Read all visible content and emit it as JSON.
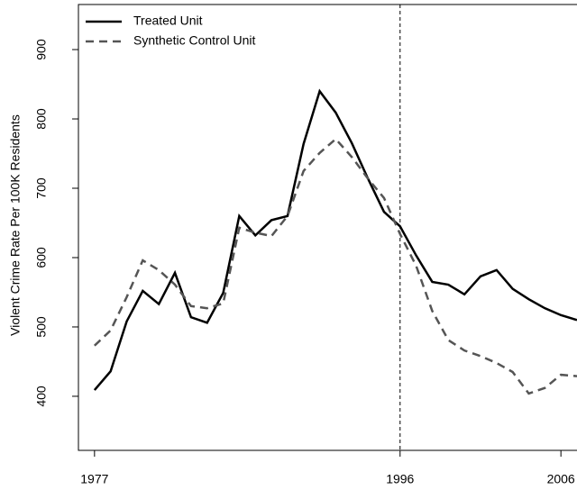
{
  "chart_data": {
    "type": "line",
    "y_label": "Violent Crime Rate Per 100K Residents",
    "x": [
      1977,
      1978,
      1979,
      1980,
      1981,
      1982,
      1983,
      1984,
      1985,
      1986,
      1987,
      1988,
      1989,
      1990,
      1991,
      1992,
      1993,
      1994,
      1995,
      1996,
      1997,
      1998,
      1999,
      2000,
      2001,
      2002,
      2003,
      2004,
      2005,
      2006,
      2007
    ],
    "series": [
      {
        "name": "Treated Unit",
        "color": "#000000",
        "dash": "solid",
        "values": [
          409,
          436,
          508,
          552,
          533,
          578,
          514,
          506,
          549,
          660,
          632,
          654,
          660,
          764,
          840,
          809,
          765,
          714,
          666,
          645,
          603,
          565,
          561,
          547,
          573,
          582,
          555,
          540,
          527,
          517,
          510
        ]
      },
      {
        "name": "Synthetic Control Unit",
        "color": "#555555",
        "dash": "dashed",
        "values": [
          473,
          495,
          543,
          596,
          582,
          561,
          530,
          527,
          534,
          643,
          636,
          631,
          660,
          725,
          751,
          771,
          745,
          714,
          686,
          634,
          588,
          523,
          481,
          466,
          458,
          448,
          435,
          404,
          412,
          431,
          429
        ]
      }
    ],
    "vline": 1996,
    "xlim": [
      1976,
      2007
    ],
    "ylim": [
      322,
      965
    ],
    "xticks": [
      1977,
      1996,
      2006
    ],
    "yticks": [
      400,
      500,
      600,
      700,
      800,
      900
    ],
    "legend": "top-left"
  }
}
